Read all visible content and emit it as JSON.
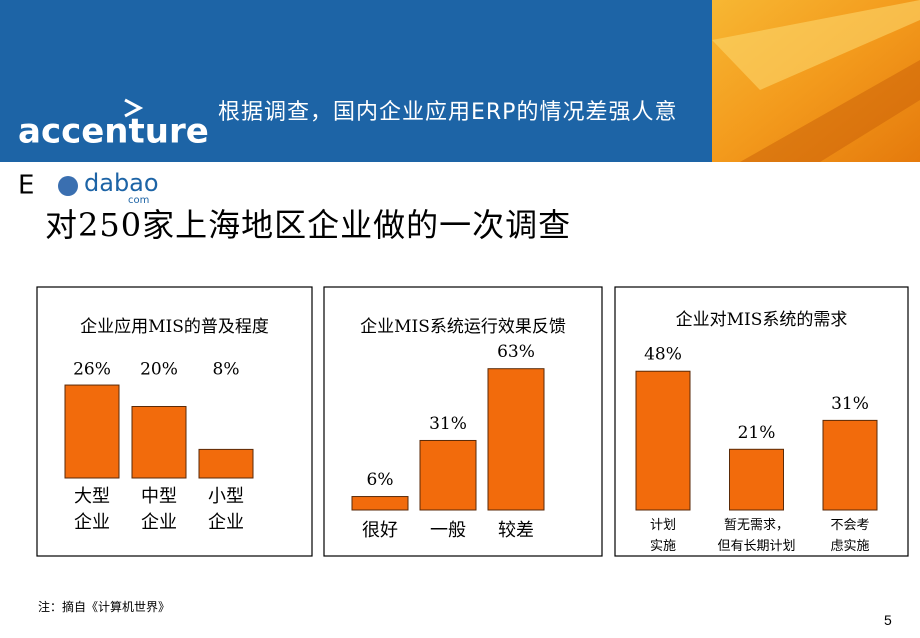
{
  "header": {
    "logo": "accenture",
    "title": "根据调查，国内企业应用ERP的情况差强人意"
  },
  "watermark": {
    "left": "E",
    "main": "dabao",
    "domain": "com"
  },
  "subtitle": "对250家上海地区企业做的一次调查",
  "chart_data": [
    {
      "type": "bar",
      "title": "企业应用MIS的普及程度",
      "categories": [
        "大型\n企业",
        "中型\n企业",
        "小型\n企业"
      ],
      "values": [
        26,
        20,
        8
      ],
      "value_labels": [
        "26%",
        "20%",
        "8%"
      ],
      "color": "#f26b0c",
      "ylim": [
        0,
        40
      ]
    },
    {
      "type": "bar",
      "title": "企业MIS系统运行效果反馈",
      "categories": [
        "很好",
        "一般",
        "较差"
      ],
      "values": [
        6,
        31,
        63
      ],
      "value_labels": [
        "6%",
        "31%",
        "63%"
      ],
      "color": "#f26b0c",
      "ylim": [
        0,
        70
      ]
    },
    {
      "type": "bar",
      "title": "企业对MIS系统的需求",
      "categories": [
        "计划\n实施",
        "暂无需求，\n但有长期计划",
        "不会考\n虑实施"
      ],
      "values": [
        48,
        21,
        31
      ],
      "value_labels": [
        "48%",
        "21%",
        "31%"
      ],
      "color": "#f26b0c",
      "ylim": [
        0,
        55
      ]
    }
  ],
  "footer": {
    "note": "注：摘自《计算机世界》",
    "page": "5"
  }
}
